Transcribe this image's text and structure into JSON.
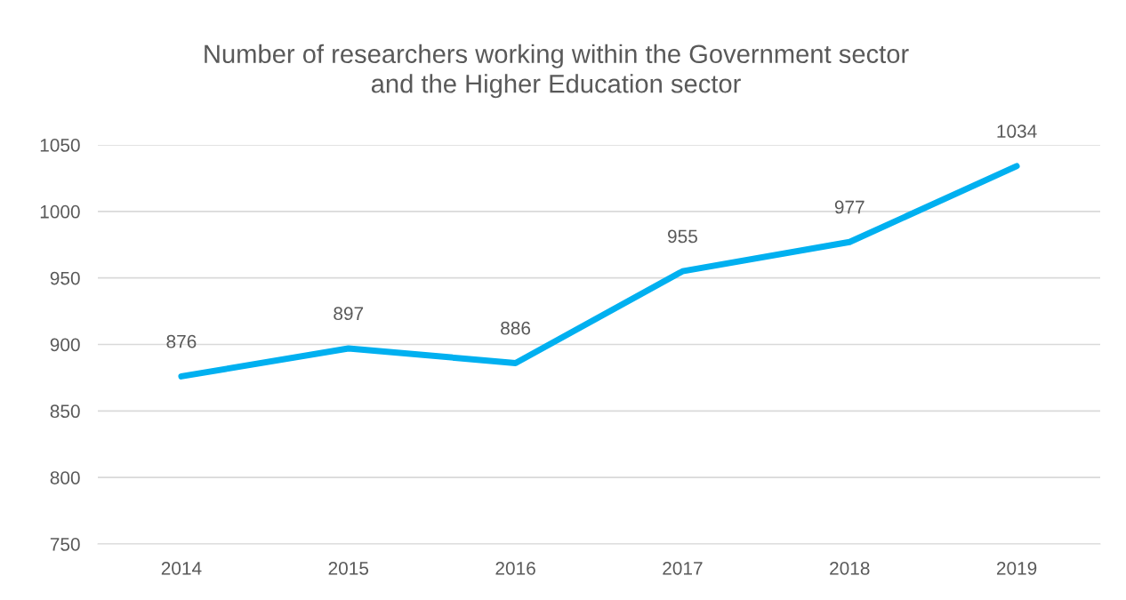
{
  "chart_data": {
    "type": "line",
    "title": "Number of researchers working within the Government sector\nand the Higher Education sector",
    "categories": [
      "2014",
      "2015",
      "2016",
      "2017",
      "2018",
      "2019"
    ],
    "series": [
      {
        "color": "#00b0f0",
        "values": [
          876,
          897,
          886,
          955,
          977,
          1034
        ]
      }
    ],
    "ylim": [
      750,
      1050
    ],
    "yticks": [
      750,
      800,
      850,
      900,
      950,
      1000,
      1050
    ],
    "grid": "y",
    "data_labels": true,
    "marker": "none",
    "line_style": "solid"
  }
}
